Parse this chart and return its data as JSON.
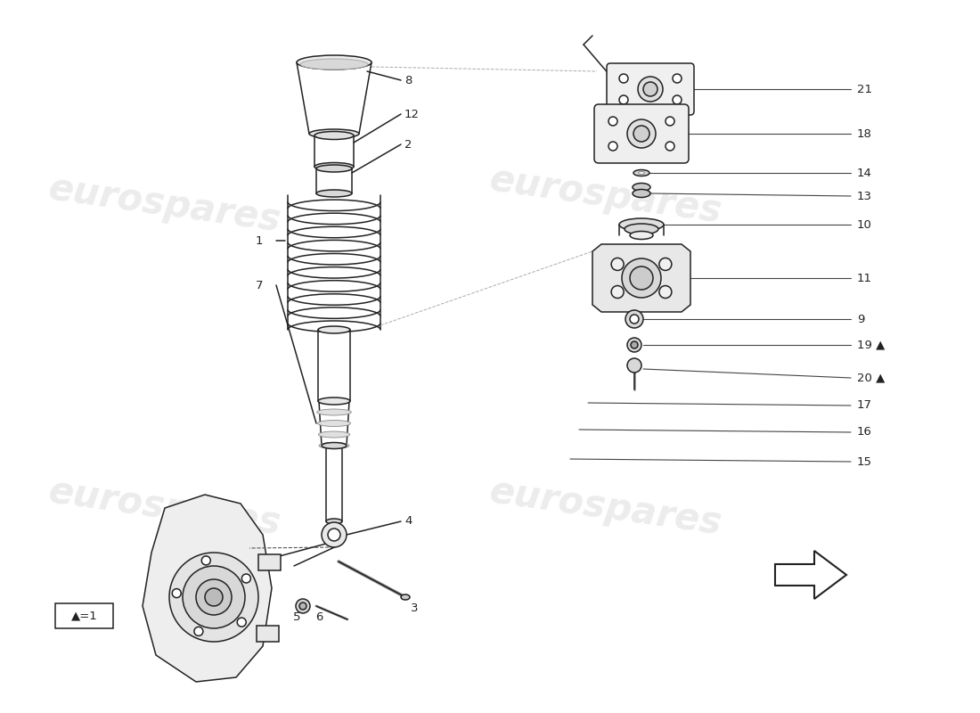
{
  "bg_color": "#ffffff",
  "line_color": "#222222",
  "lw": 1.1,
  "fig_width": 11.0,
  "fig_height": 8.0,
  "dpi": 100,
  "watermark_text": "eurospares",
  "wm_color": "#dddddd",
  "wm_alpha": 0.55,
  "label_fontsize": 9.5,
  "legend_text": "▲=1"
}
